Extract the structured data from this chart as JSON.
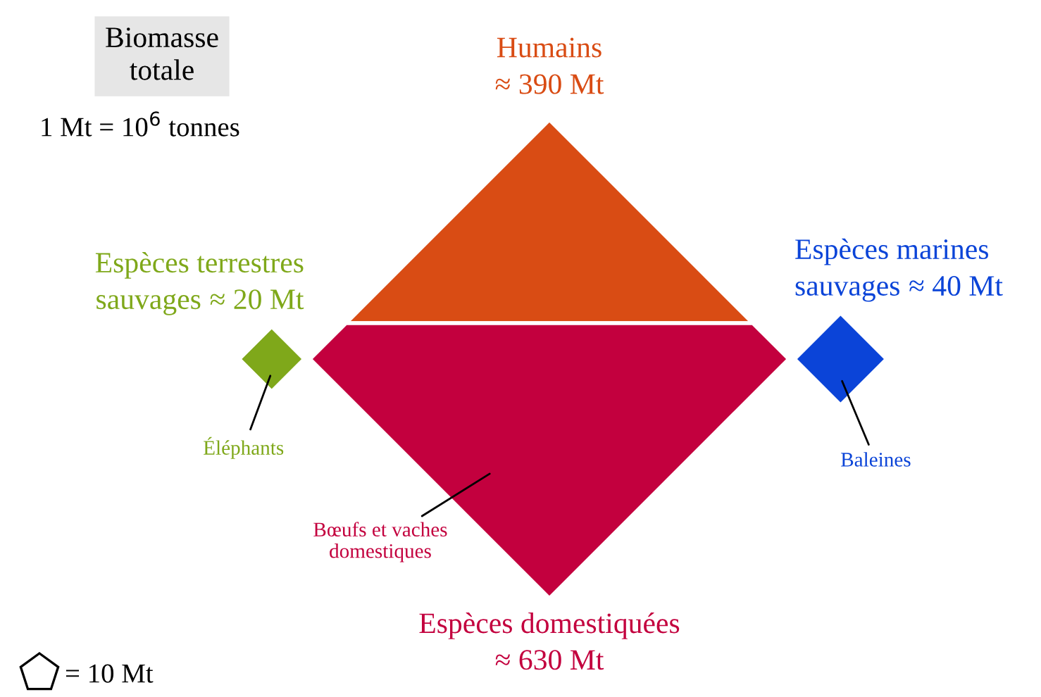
{
  "chart_data": {
    "type": "other",
    "title": "Biomasse totale",
    "categories": [
      "Humains",
      "Espèces terrestres sauvages",
      "Espèces marines sauvages",
      "Espèces domestiquées"
    ],
    "values": [
      390,
      20,
      40,
      630
    ],
    "value_labels": [
      "≈ 390 Mt",
      "≈ 20 Mt",
      "≈ 40 Mt",
      "≈ 630 Mt"
    ],
    "colors": [
      "#d94c14",
      "#7fa81a",
      "#0b44d8",
      "#c3003e"
    ],
    "annotations": [
      "1 Mt = 10$^{6}$ tonnes",
      "Éléphants",
      "Baleines",
      "Bœufs et vaches domestiques",
      "= 10 Mt"
    ]
  }
}
